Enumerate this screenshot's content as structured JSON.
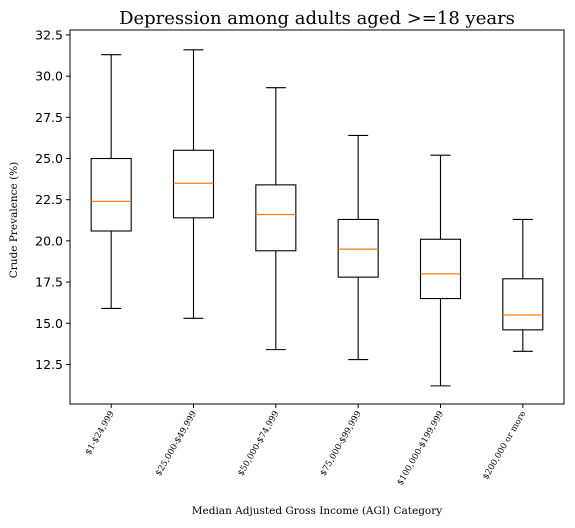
{
  "chart_data": {
    "type": "box",
    "title": "Depression among adults aged >=18 years",
    "xlabel": "Median Adjusted Gross Income (AGI) Category",
    "ylabel": "Crude Prevalence (%)",
    "ylim": [
      10.1,
      32.8
    ],
    "yticks": [
      12.5,
      15.0,
      17.5,
      20.0,
      22.5,
      25.0,
      27.5,
      30.0,
      32.5
    ],
    "yticks_labels": [
      "12.5",
      "15.0",
      "17.5",
      "20.0",
      "22.5",
      "25.0",
      "27.5",
      "30.0",
      "32.5"
    ],
    "categories": [
      "$1-$24,999",
      "$25,000-$49,999",
      "$50,000-$74,999",
      "$75,000-$99,999",
      "$100,000-$199,999",
      "$200,000 or more"
    ],
    "boxes": [
      {
        "whisker_low": 15.9,
        "q1": 20.6,
        "median": 22.4,
        "q3": 25.0,
        "whisker_high": 31.3
      },
      {
        "whisker_low": 15.3,
        "q1": 21.4,
        "median": 23.5,
        "q3": 25.5,
        "whisker_high": 31.6
      },
      {
        "whisker_low": 13.4,
        "q1": 19.4,
        "median": 21.6,
        "q3": 23.4,
        "whisker_high": 29.3
      },
      {
        "whisker_low": 12.8,
        "q1": 17.8,
        "median": 19.5,
        "q3": 21.3,
        "whisker_high": 26.4
      },
      {
        "whisker_low": 11.2,
        "q1": 16.5,
        "median": 18.0,
        "q3": 20.1,
        "whisker_high": 25.2
      },
      {
        "whisker_low": 13.3,
        "q1": 14.6,
        "median": 15.5,
        "q3": 17.7,
        "whisker_high": 21.3
      }
    ],
    "colors": {
      "box": "#000000",
      "median": "#ff7f0e"
    },
    "grid": false,
    "legend": "none"
  }
}
